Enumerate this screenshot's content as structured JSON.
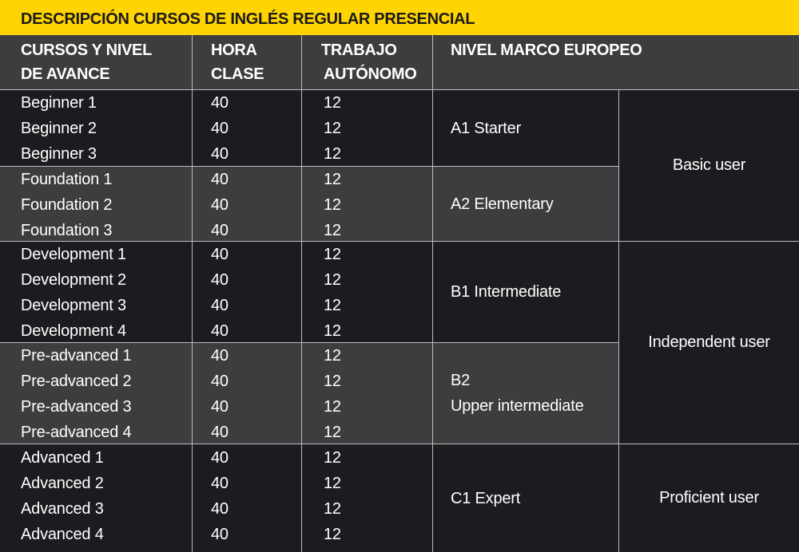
{
  "title": "DESCRIPCIÓN CURSOS DE INGLÉS REGULAR PRESENCIAL",
  "headers": {
    "course_line1": "CURSOS Y NIVEL",
    "course_line2": "DE AVANCE",
    "hours_line1": "HORA",
    "hours_line2": "CLASE",
    "autonomous_line1": "TRABAJO",
    "autonomous_line2": "AUTÓNOMO",
    "level": "NIVEL MARCO EUROPEO"
  },
  "groups": [
    {
      "shade": "dark",
      "courses": [
        "Beginner 1",
        "Beginner 2",
        "Beginner 3"
      ],
      "hours": [
        "40",
        "40",
        "40"
      ],
      "autonomous": [
        "12",
        "12",
        "12"
      ],
      "level_lines": [
        "A1 Starter"
      ]
    },
    {
      "shade": "light",
      "courses": [
        "Foundation 1",
        "Foundation 2",
        "Foundation 3"
      ],
      "hours": [
        "40",
        "40",
        "40"
      ],
      "autonomous": [
        "12",
        "12",
        "12"
      ],
      "level_lines": [
        "A2 Elementary"
      ]
    },
    {
      "shade": "dark",
      "courses": [
        "Development 1",
        "Development 2",
        "Development 3",
        "Development 4"
      ],
      "hours": [
        "40",
        "40",
        "40",
        "40"
      ],
      "autonomous": [
        "12",
        "12",
        "12",
        "12"
      ],
      "level_lines": [
        "B1 Intermediate"
      ]
    },
    {
      "shade": "light",
      "courses": [
        "Pre-advanced 1",
        "Pre-advanced 2",
        "Pre-advanced 3",
        "Pre-advanced 4"
      ],
      "hours": [
        "40",
        "40",
        "40",
        "40"
      ],
      "autonomous": [
        "12",
        "12",
        "12",
        "12"
      ],
      "level_lines": [
        "B2",
        "Upper intermediate"
      ]
    },
    {
      "shade": "dark",
      "courses": [
        "Advanced 1",
        "Advanced 2",
        "Advanced 3",
        "Advanced 4"
      ],
      "hours": [
        "40",
        "40",
        "40",
        "40"
      ],
      "autonomous": [
        "12",
        "12",
        "12",
        "12"
      ],
      "level_lines": [
        "C1 Expert"
      ]
    }
  ],
  "user_levels": [
    "Basic user",
    "Independent user",
    "Proficient user"
  ],
  "colors": {
    "title_bg": "#ffd400",
    "dark_row": "#1c1b1f",
    "light_row": "#3d3d3f",
    "grid_line": "#bdbdbd"
  }
}
